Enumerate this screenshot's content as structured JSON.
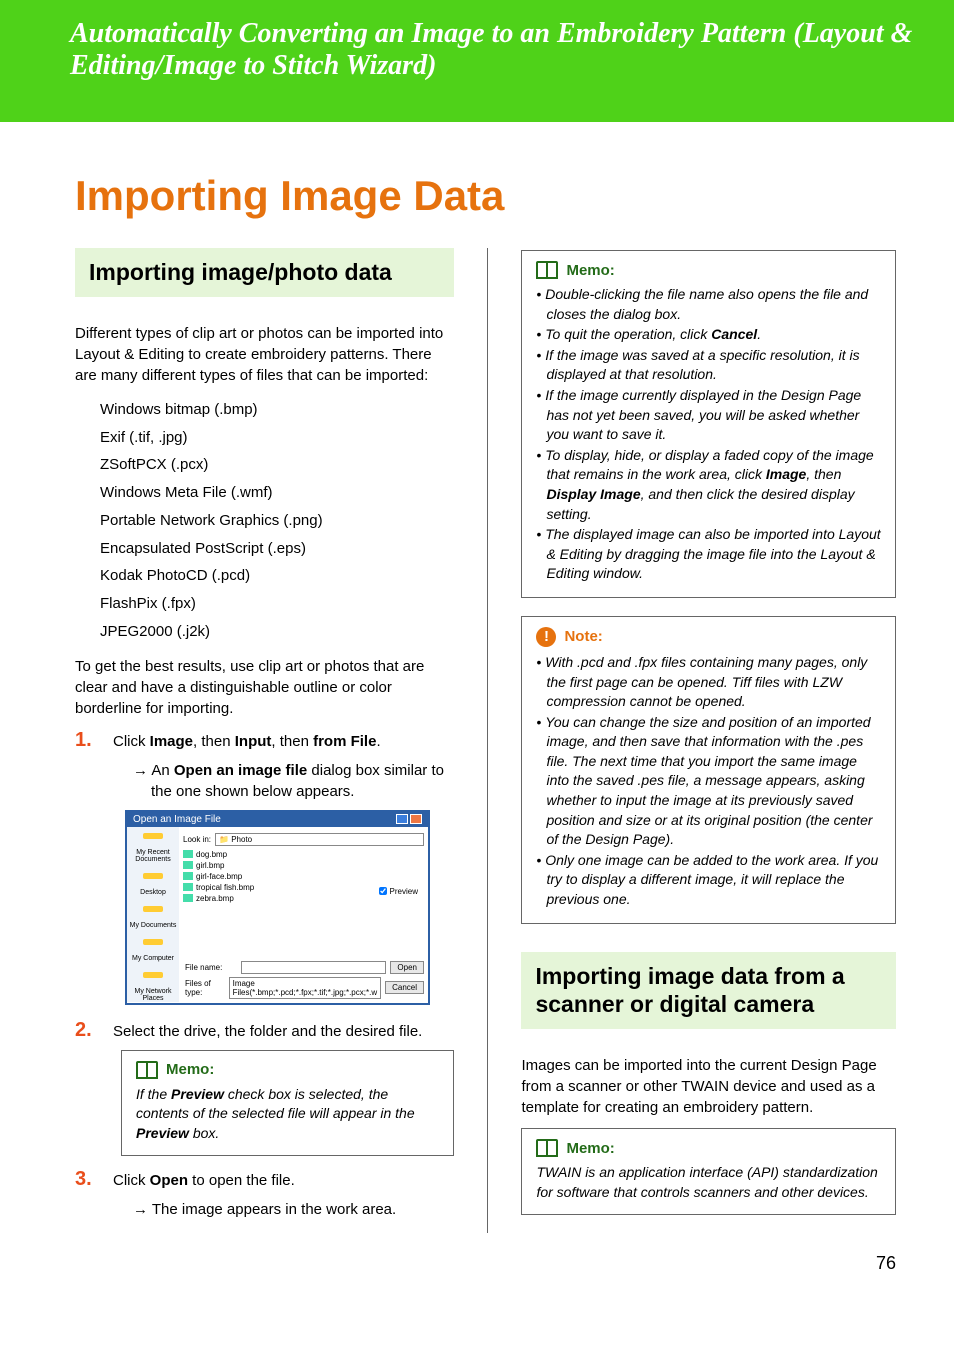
{
  "banner": {
    "title": "Automatically Converting an Image to an Embroidery Pattern (Layout & Editing/Image to Stitch Wizard)"
  },
  "page_title": "Importing Image Data",
  "left": {
    "section_heading": "Importing image/photo data",
    "intro_para": "Different types of clip art or photos can be imported into Layout & Editing to create embroidery patterns. There are many different types of files that can be imported:",
    "formats": [
      "Windows bitmap (.bmp)",
      "Exif (.tif, .jpg)",
      "ZSoftPCX (.pcx)",
      "Windows Meta File (.wmf)",
      "Portable Network Graphics (.png)",
      "Encapsulated PostScript (.eps)",
      "Kodak PhotoCD (.pcd)",
      "FlashPix (.fpx)",
      "JPEG2000 (.j2k)"
    ],
    "results_para": "To get the best results, use clip art or photos that are clear and have a distinguishable outline or color borderline for importing.",
    "step1_pre": "Click ",
    "step1_b1": "Image",
    "step1_mid1": ", then ",
    "step1_b2": "Input",
    "step1_mid2": ", then ",
    "step1_b3": "from File",
    "step1_post": ".",
    "step1_arrow_pre": "→ An ",
    "step1_arrow_b": "Open an image file",
    "step1_arrow_post": " dialog box similar to the one shown below appears.",
    "dialog": {
      "title": "Open an Image File",
      "look_in_label": "Look in:",
      "look_in_value": "Photo",
      "files": [
        "dog.bmp",
        "girl.bmp",
        "girl-face.bmp",
        "tropical fish.bmp",
        "zebra.bmp"
      ],
      "sidebar": [
        "My Recent Documents",
        "Desktop",
        "My Documents",
        "My Computer",
        "My Network Places"
      ],
      "file_name_label": "File name:",
      "file_type_label": "Files of type:",
      "file_type_value": "Image Files(*.bmp;*.pcd;*.fpx;*.tif;*.jpg;*.pcx;*.w",
      "open_btn": "Open",
      "cancel_btn": "Cancel",
      "preview_label": "Preview"
    },
    "step2_text": "Select the drive, the folder and the desired file.",
    "memo2": {
      "label": "Memo:",
      "text_pre": "If the ",
      "text_b1": "Preview",
      "text_mid": " check box is selected, the contents of the selected file will appear in the ",
      "text_b2": "Preview",
      "text_post": " box."
    },
    "step3_pre": "Click ",
    "step3_b": "Open",
    "step3_post": " to open the file.",
    "step3_arrow": "→ The image appears in the work area."
  },
  "right": {
    "memo1": {
      "label": "Memo:",
      "items_html": [
        "Double-clicking the file name also opens the file and closes the dialog box.",
        "To quit the operation, click <b>Cancel</b>.",
        "If the image was saved at a specific resolution, it is displayed at that resolution.",
        "If the image currently displayed in the Design Page has not yet been saved, you will be asked whether you want to save it.",
        "To display, hide, or display a faded copy of the image that remains in the work area, click <b>Image</b>, then <b>Display Image</b>, and then click the desired display setting.",
        "The displayed image can also be imported into Layout & Editing by dragging the image file into the Layout & Editing window."
      ]
    },
    "note1": {
      "label": "Note:",
      "items": [
        "With .pcd and .fpx files containing many pages, only the first page can be opened. Tiff files with LZW compression cannot be opened.",
        "You can change the size and position of an imported image, and then save that information with the .pes file. The next time that you import the same image into the saved .pes file, a message appears, asking whether to input the image at its previously saved position and size or at its original position (the center of the Design Page).",
        "Only one image can be added to the work area. If you try to display a different image, it will replace the previous one."
      ]
    },
    "section2_heading": "Importing image data from a scanner or digital camera",
    "section2_para": "Images can be imported into the current Design Page from a scanner or other TWAIN device and used as a template for creating an embroidery pattern.",
    "memo3": {
      "label": "Memo:",
      "text": "TWAIN is an application interface (API) standardization for software that controls scanners and other devices."
    }
  },
  "page_number": "76",
  "colors": {
    "green": "#4fd219",
    "orange_heading": "#e6720e",
    "orange_step": "#e94e1b",
    "memo_green": "#236b18",
    "section_bg": "#e5f5d8"
  }
}
